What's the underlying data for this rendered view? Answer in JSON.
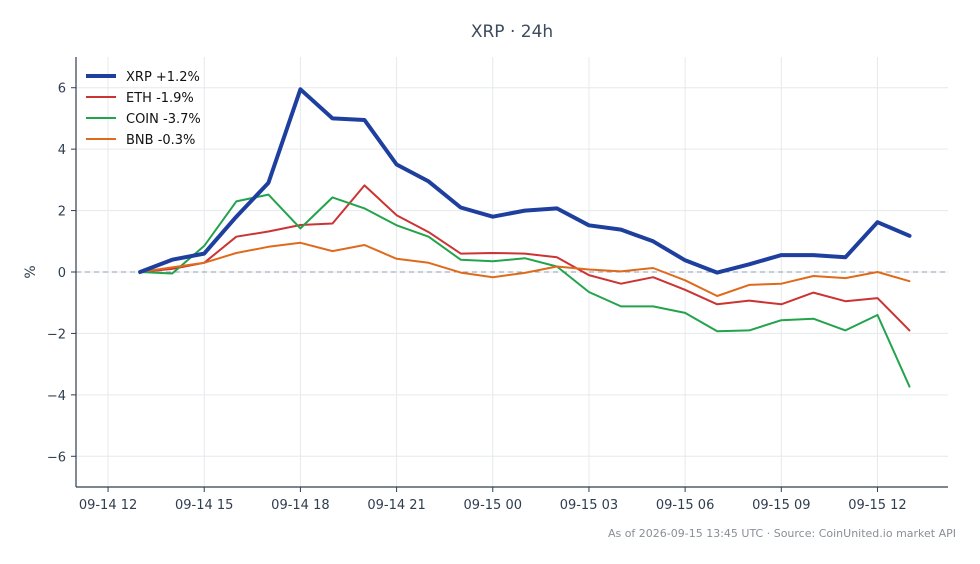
{
  "chart_data": {
    "type": "line",
    "title": "XRP · 24h",
    "xlabel": "",
    "ylabel": "%",
    "x_ticks": [
      "09-14 12",
      "09-14 15",
      "09-14 18",
      "09-14 21",
      "09-15 00",
      "09-15 03",
      "09-15 06",
      "09-15 09",
      "09-15 12"
    ],
    "y_ticks": [
      "6",
      "4",
      "2",
      "0",
      "−2",
      "−4",
      "−6"
    ],
    "xlim_hours": [
      -1.0,
      26.2
    ],
    "ylim": [
      -7,
      7
    ],
    "grid": true,
    "legend_position": "top-left",
    "x_hours": [
      1,
      2,
      3,
      4,
      5,
      6,
      7,
      8,
      9,
      10,
      11,
      12,
      13,
      14,
      15,
      16,
      17,
      18,
      19,
      20,
      21,
      22,
      23,
      24,
      25
    ],
    "series": [
      {
        "name": "XRP +1.2%",
        "color": "#1f3f9e",
        "width": 4,
        "values": [
          0.0,
          0.4,
          0.6,
          1.8,
          2.9,
          5.95,
          5.0,
          4.95,
          3.5,
          2.95,
          2.1,
          1.8,
          2.0,
          2.07,
          1.52,
          1.38,
          1.0,
          0.38,
          -0.02,
          0.25,
          0.55,
          0.55,
          0.48,
          1.62,
          1.18
        ]
      },
      {
        "name": "ETH -1.9%",
        "color": "#cc3333",
        "width": 2,
        "values": [
          0.0,
          0.1,
          0.3,
          1.15,
          1.32,
          1.53,
          1.58,
          2.82,
          1.85,
          1.3,
          0.6,
          0.62,
          0.6,
          0.48,
          -0.1,
          -0.38,
          -0.17,
          -0.58,
          -1.05,
          -0.93,
          -1.05,
          -0.67,
          -0.95,
          -0.85,
          -1.9
        ]
      },
      {
        "name": "COIN -3.7%",
        "color": "#22a34c",
        "width": 2,
        "values": [
          0.0,
          -0.05,
          0.85,
          2.3,
          2.52,
          1.42,
          2.43,
          2.07,
          1.52,
          1.15,
          0.4,
          0.35,
          0.45,
          0.18,
          -0.65,
          -1.12,
          -1.12,
          -1.33,
          -1.93,
          -1.9,
          -1.57,
          -1.52,
          -1.9,
          -1.4,
          -3.73
        ]
      },
      {
        "name": "BNB -0.3%",
        "color": "#e06a1b",
        "width": 2,
        "values": [
          0.0,
          0.15,
          0.3,
          0.62,
          0.82,
          0.95,
          0.68,
          0.88,
          0.43,
          0.3,
          -0.02,
          -0.17,
          -0.03,
          0.18,
          0.08,
          0.02,
          0.13,
          -0.27,
          -0.78,
          -0.42,
          -0.38,
          -0.13,
          -0.2,
          0.0,
          -0.3
        ]
      }
    ]
  },
  "footer": "As of 2026-09-15 13:45 UTC · Source: CoinUnited.io market API"
}
